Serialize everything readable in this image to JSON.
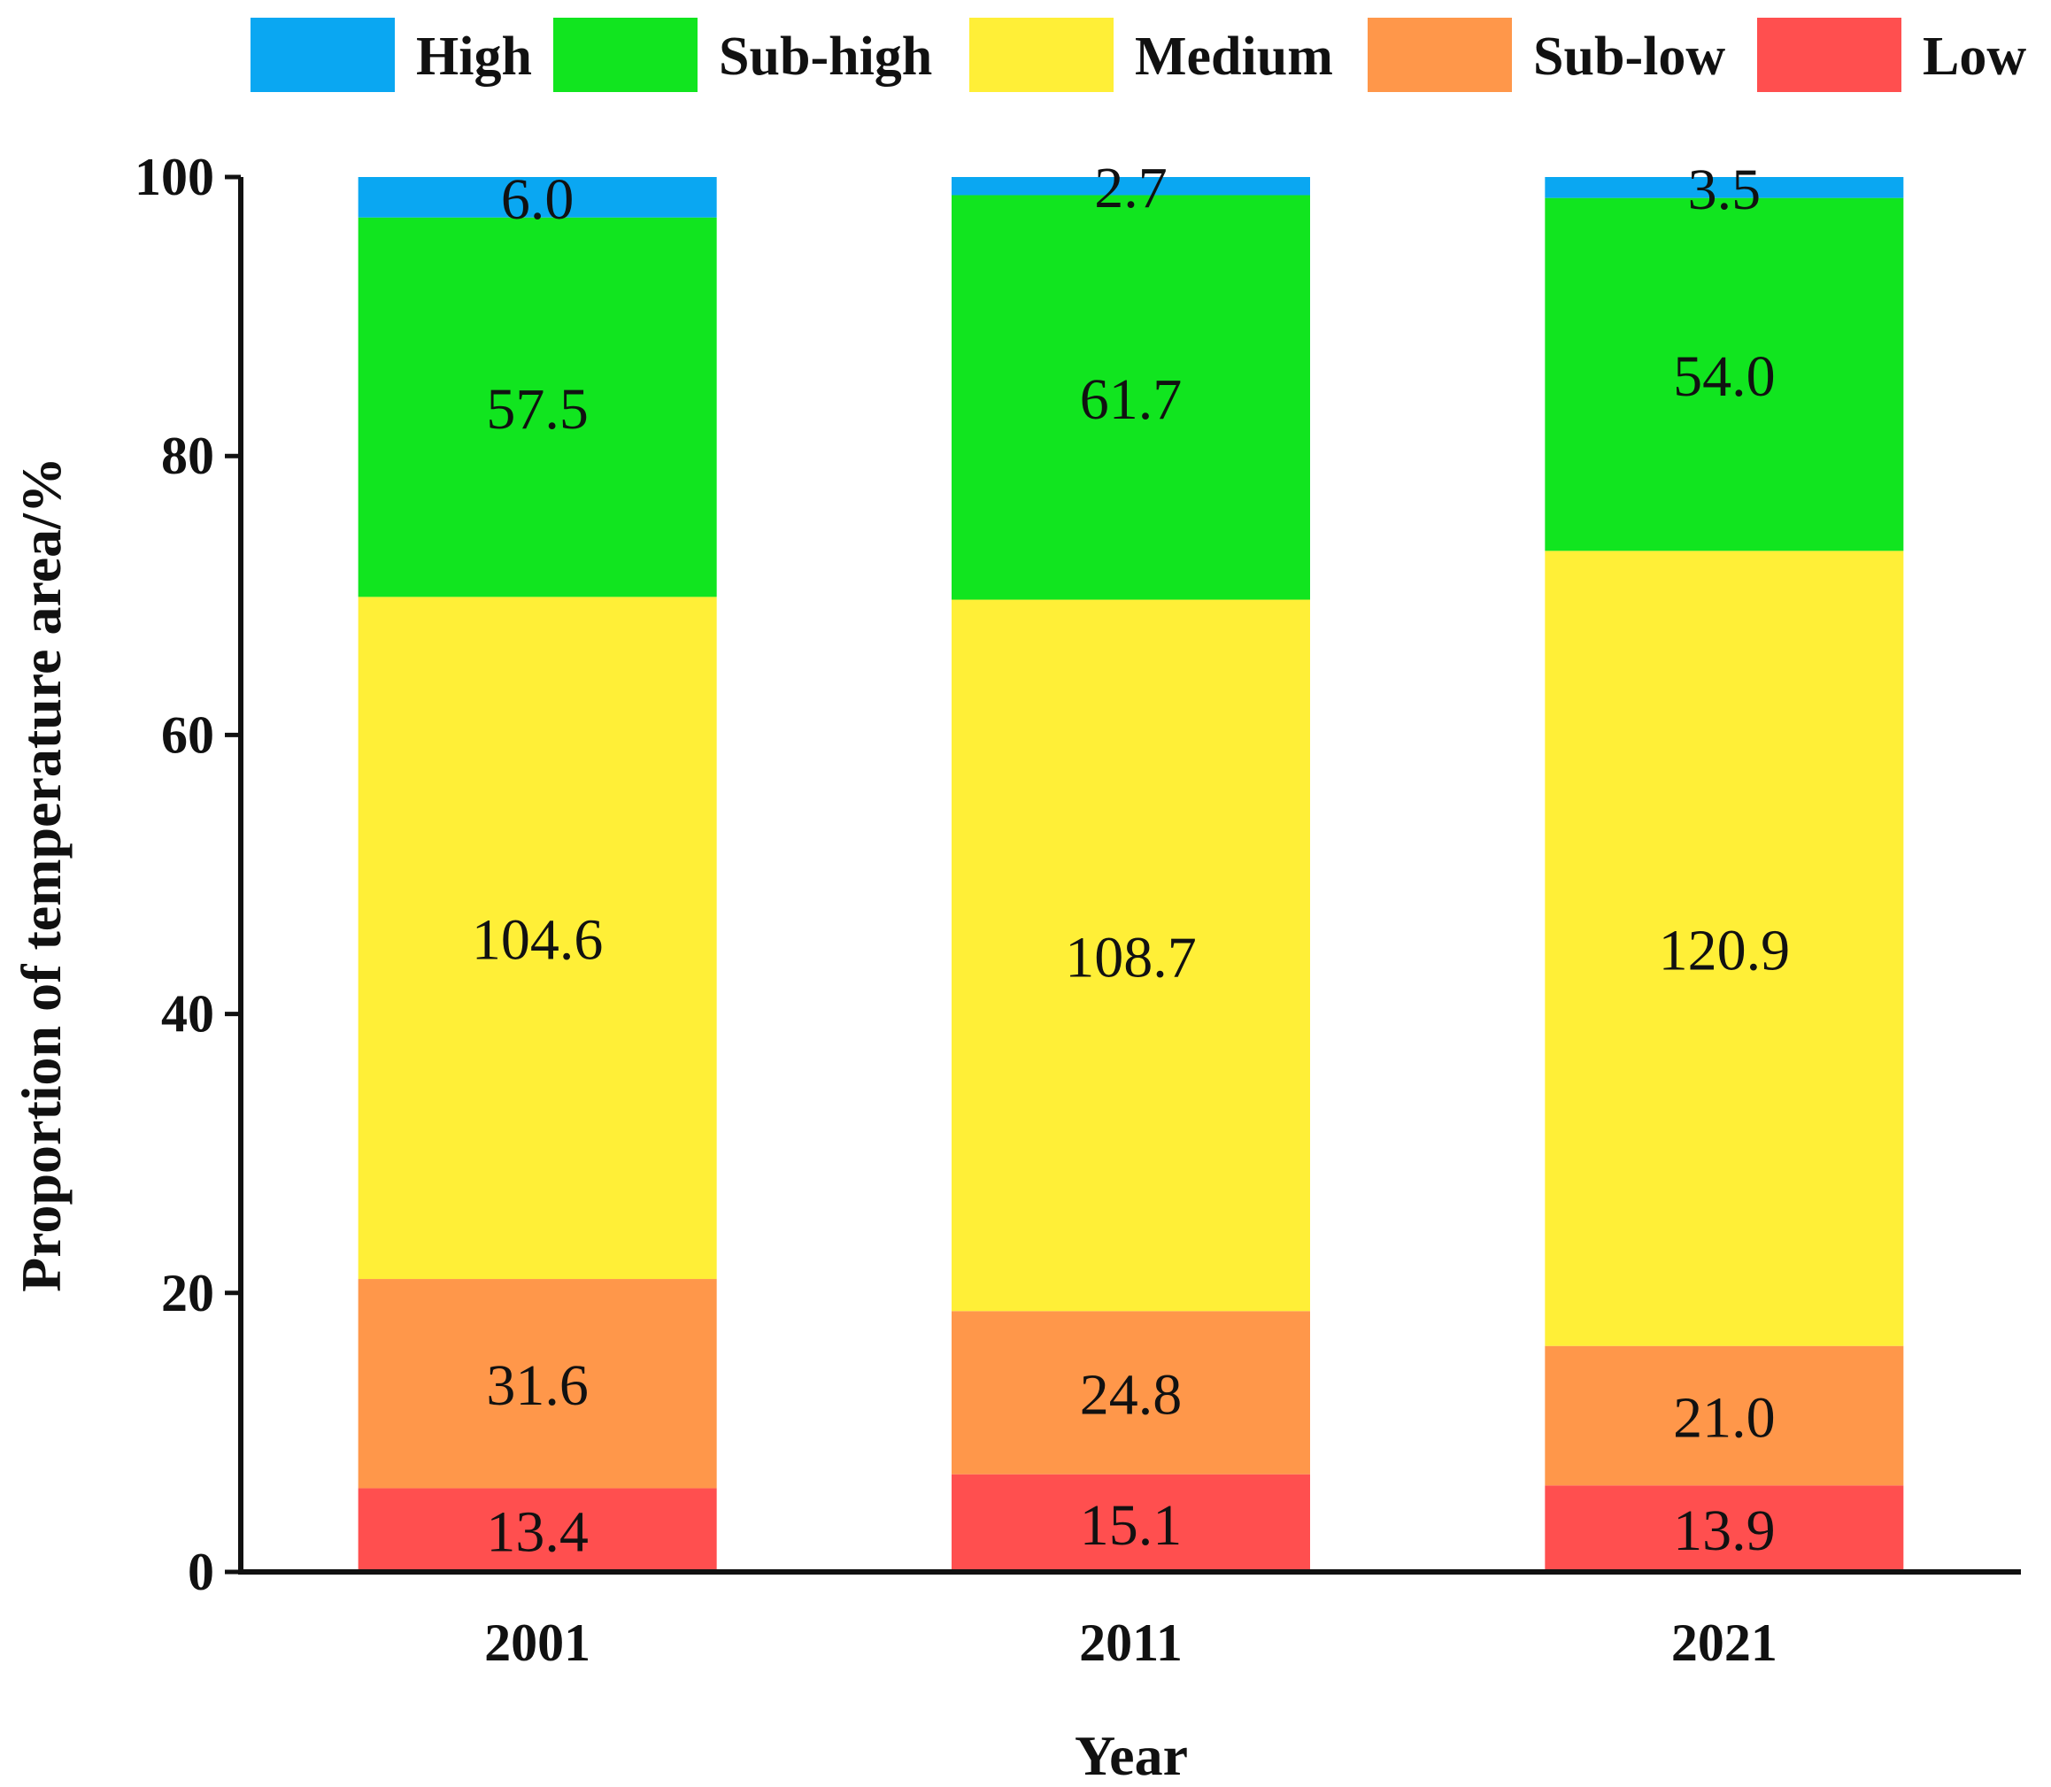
{
  "chart_data": {
    "type": "bar",
    "stacked": true,
    "title": "",
    "xlabel": "Year",
    "ylabel": "Proportion of temperature area/%",
    "ylim": [
      0,
      100
    ],
    "yticks": [
      "0",
      "20",
      "40",
      "60",
      "80",
      "100"
    ],
    "categories": [
      "2001",
      "2011",
      "2021"
    ],
    "legend_position": "top",
    "series": [
      {
        "name": "Low",
        "color": "#ff4f4f",
        "heights": [
          6.0,
          7.0,
          6.2
        ],
        "labels": [
          "13.4",
          "15.1",
          "13.9"
        ]
      },
      {
        "name": "Sub-low",
        "color": "#ff974a",
        "heights": [
          15.0,
          11.7,
          10.0
        ],
        "labels": [
          "31.6",
          "24.8",
          "21.0"
        ]
      },
      {
        "name": "Medium",
        "color": "#ffef37",
        "heights": [
          48.9,
          51.0,
          57.0
        ],
        "labels": [
          "104.6",
          "108.7",
          "120.9"
        ]
      },
      {
        "name": "Sub-high",
        "color": "#11e51f",
        "heights": [
          27.2,
          29.0,
          25.3
        ],
        "labels": [
          "57.5",
          "61.7",
          "54.0"
        ]
      },
      {
        "name": "High",
        "color": "#0aa7f2",
        "heights": [
          2.9,
          1.3,
          1.5
        ],
        "labels": [
          "6.0",
          "2.7",
          "3.5"
        ]
      }
    ],
    "legend_order": [
      "High",
      "Sub-high",
      "Medium",
      "Sub-low",
      "Low"
    ]
  }
}
